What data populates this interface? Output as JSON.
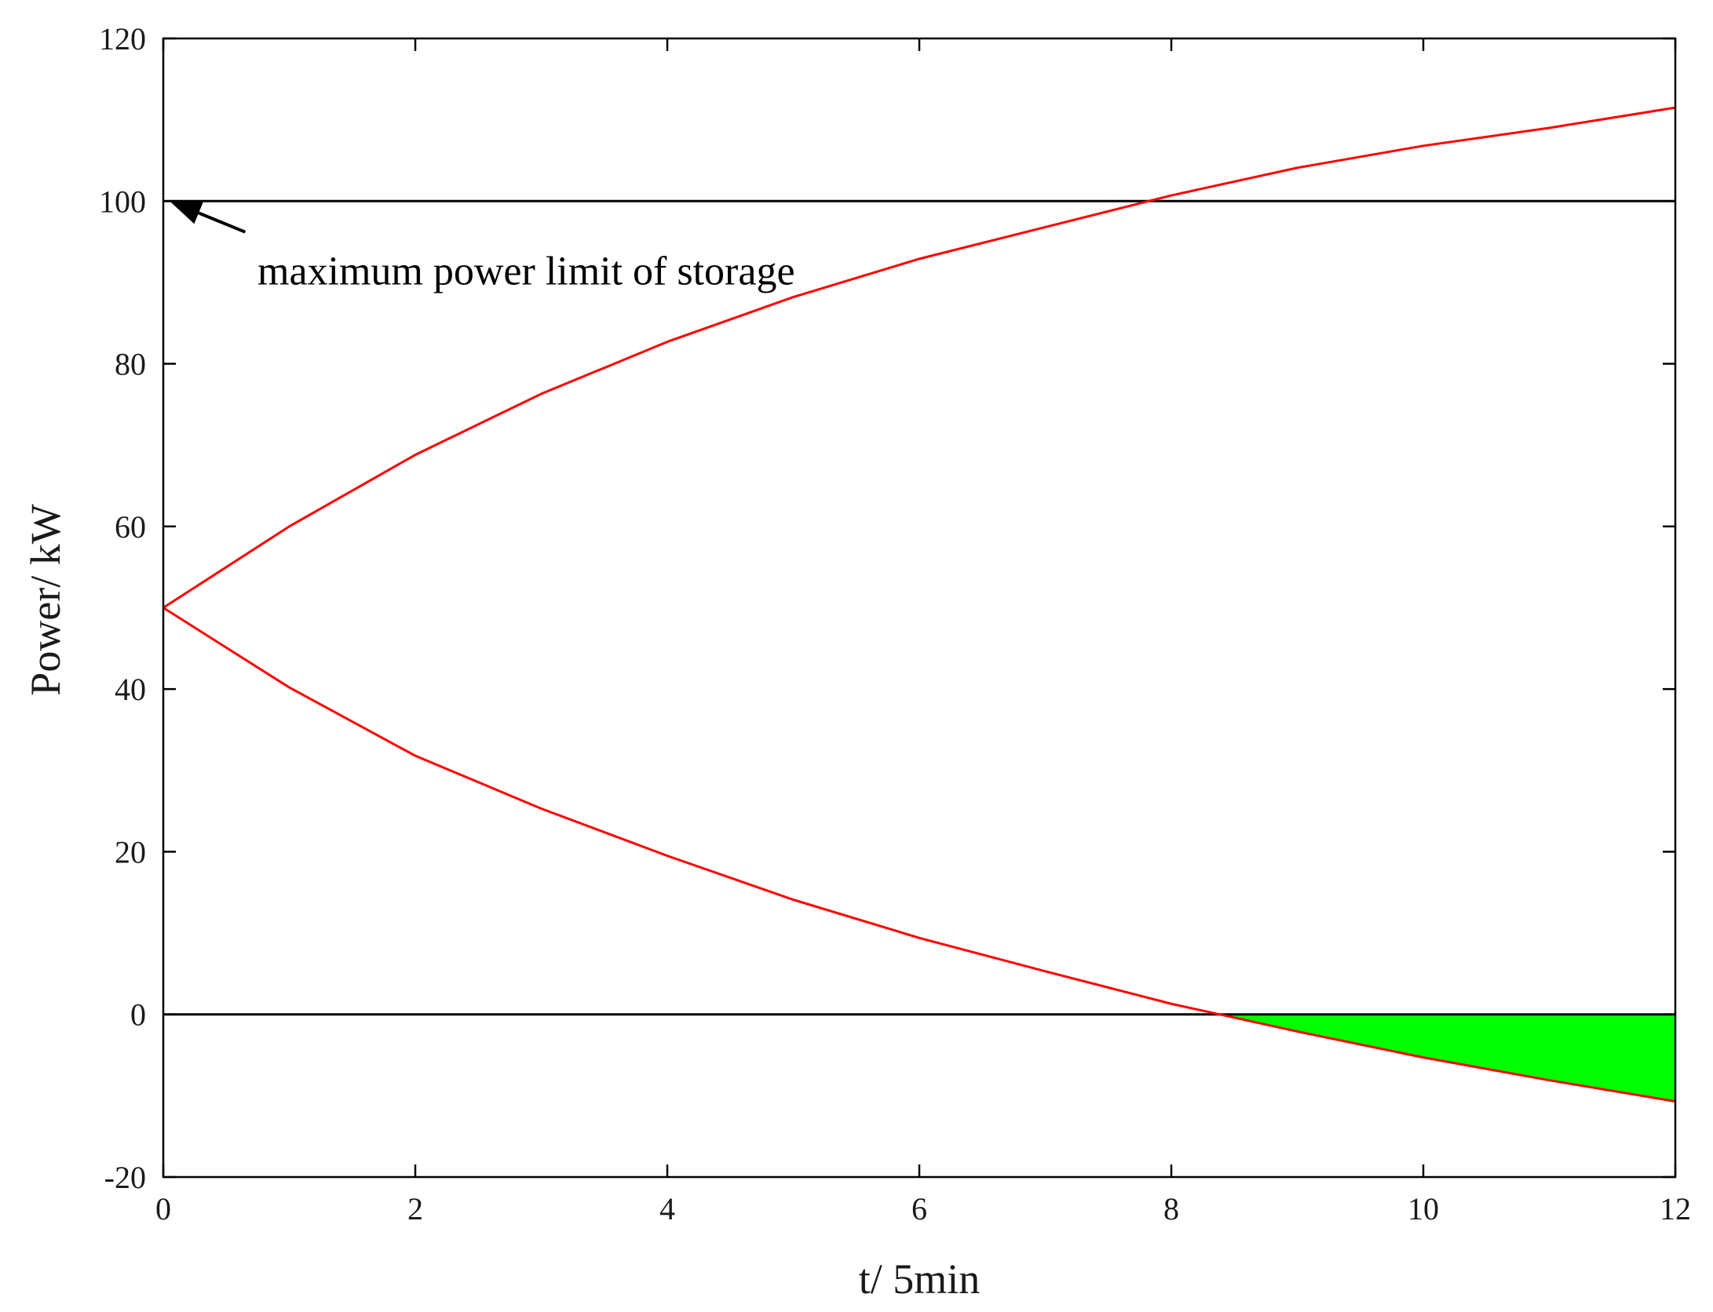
{
  "chart_data": {
    "type": "line",
    "title": "",
    "xlabel": "t/ 5min",
    "ylabel": "Power/ kW",
    "xlim": [
      0,
      12
    ],
    "ylim": [
      -20,
      120
    ],
    "xticks": [
      0,
      2,
      4,
      6,
      8,
      10,
      12
    ],
    "xtick_labels": [
      "0",
      "2",
      "4",
      "6",
      "8",
      "10",
      "12"
    ],
    "yticks": [
      -20,
      0,
      20,
      40,
      60,
      80,
      100,
      120
    ],
    "ytick_labels": [
      "-20",
      "0",
      "20",
      "40",
      "60",
      "80",
      "100",
      "120"
    ],
    "grid": false,
    "x": [
      0,
      1,
      2,
      3,
      4,
      5,
      6,
      7,
      8,
      9,
      10,
      11,
      12
    ],
    "series": [
      {
        "values": [
          50,
          60,
          68.8,
          76.3,
          82.7,
          88.2,
          92.9,
          96.8,
          100.7,
          104.1,
          106.8,
          109.0,
          111.5
        ],
        "color": "#ff0000"
      },
      {
        "values": [
          50,
          40.2,
          31.8,
          25.3,
          19.5,
          14.1,
          9.4,
          5.3,
          1.3,
          -2.1,
          -5.3,
          -8.1,
          -10.7
        ],
        "color": "#ff0000"
      }
    ],
    "reference_lines": [
      {
        "y": 100,
        "color": "#000000"
      },
      {
        "y": 0,
        "color": "#000000"
      }
    ],
    "shaded_region": {
      "from_x": 8.38,
      "to_x": 12,
      "between": "lower-series-and-zero",
      "color": "#00ff00"
    },
    "annotation": {
      "text": "maximum power limit of storage",
      "arrow_to": [
        0.05,
        100
      ],
      "arrow_from": [
        0.65,
        96.2
      ]
    }
  }
}
